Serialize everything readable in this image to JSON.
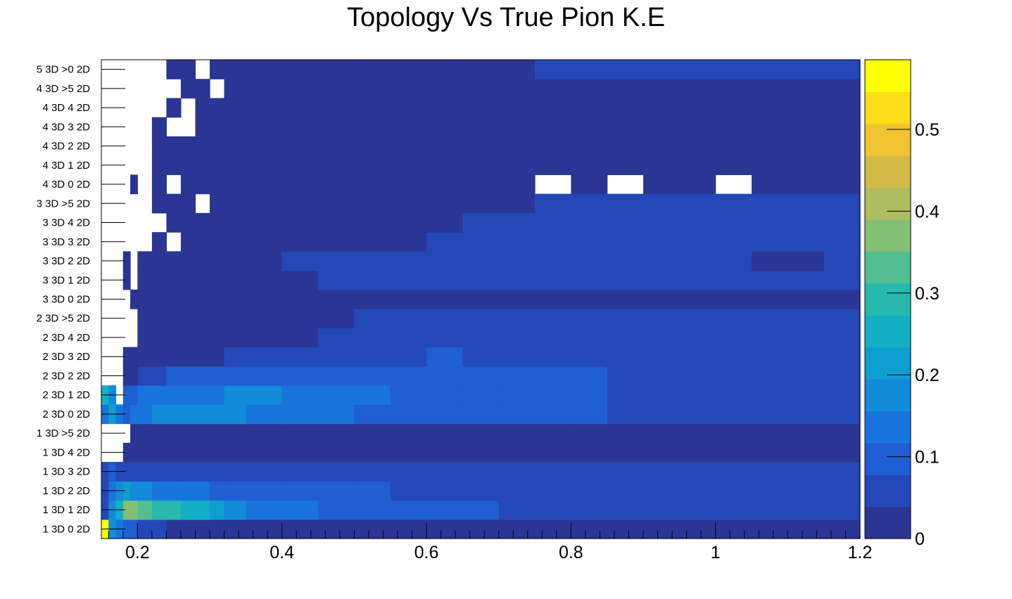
{
  "chart_data": {
    "type": "heatmap",
    "title": "Topology Vs True Pion K.E",
    "xlabel": "",
    "ylabel": "",
    "xlim": [
      0.15,
      1.2
    ],
    "x_ticks": [
      "0.2",
      "0.4",
      "0.6",
      "0.8",
      "1",
      "1.2"
    ],
    "x_tick_values": [
      0.2,
      0.4,
      0.6,
      0.8,
      1.0,
      1.2
    ],
    "y_categories": [
      "1 3D  0 2D",
      "1 3D  1 2D",
      "1 3D  2 2D",
      "1 3D  3 2D",
      "1 3D  4 2D",
      "1 3D  >5 2D",
      "2 3D  0 2D",
      "2 3D  1 2D",
      "2 3D  2 2D",
      "2 3D  3 2D",
      "2 3D  4 2D",
      "2 3D  >5 2D",
      "3 3D  0 2D",
      "3 3D  1 2D",
      "3 3D  2 2D",
      "3 3D  3 2D",
      "3 3D  4 2D",
      "3 3D  >5 2D",
      "4 3D  0 2D",
      "4 3D  1 2D",
      "4 3D  2 2D",
      "4 3D  3 2D",
      "4 3D  4 2D",
      "4 3D  >5 2D",
      "5 3D  >0 2D"
    ],
    "zlim": [
      0,
      0.585
    ],
    "colorbar_ticks": [
      "0",
      "0.1",
      "0.2",
      "0.3",
      "0.4",
      "0.5"
    ],
    "colorbar_tick_values": [
      0,
      0.1,
      0.2,
      0.3,
      0.4,
      0.5
    ],
    "colorscale": [
      "#2b3594",
      "#2548b8",
      "#1f5ed3",
      "#1874dc",
      "#128bd9",
      "#0e9fd0",
      "#13afc4",
      "#28b8ae",
      "#53be91",
      "#83bf75",
      "#aebd5f",
      "#d4bb47",
      "#f1c331",
      "#fcde19",
      "#ffff00"
    ],
    "x_bin_edges": [
      0.15,
      0.16,
      0.17,
      0.18,
      0.19,
      0.2,
      0.22,
      0.24,
      0.26,
      0.28,
      0.3,
      0.32,
      0.35,
      0.4,
      0.45,
      0.5,
      0.55,
      0.6,
      0.65,
      0.7,
      0.75,
      0.8,
      0.85,
      0.9,
      0.95,
      1.0,
      1.05,
      1.1,
      1.15,
      1.2
    ],
    "rows": [
      [
        0.58,
        0.18,
        0.13,
        0.1,
        0.08,
        0.07,
        0.05,
        0.03,
        0.03,
        0.03,
        0.03,
        0.01,
        0.01,
        0.01,
        0.01,
        0.01,
        0.01,
        0.01,
        0.01,
        0.01,
        0.01,
        0.01,
        0.01,
        0.01,
        0.01,
        0.01,
        0.01,
        0.01,
        0.01
      ],
      [
        0.05,
        0.19,
        0.26,
        0.38,
        0.36,
        0.33,
        0.3,
        0.29,
        0.27,
        0.24,
        0.2,
        0.18,
        0.15,
        0.12,
        0.1,
        0.1,
        0.09,
        0.08,
        0.08,
        0.07,
        0.07,
        0.07,
        0.07,
        0.06,
        0.06,
        0.06,
        0.06,
        0.05,
        0.05
      ],
      [
        0.05,
        0.15,
        0.17,
        0.2,
        0.19,
        0.17,
        0.15,
        0.13,
        0.12,
        0.12,
        0.11,
        0.1,
        0.09,
        0.09,
        0.08,
        0.08,
        0.07,
        0.07,
        0.07,
        0.06,
        0.06,
        0.06,
        0.06,
        0.06,
        0.05,
        0.05,
        0.05,
        0.05,
        0.05
      ],
      [
        0.05,
        0.1,
        0.05,
        0.05,
        0.05,
        0.05,
        0.05,
        0.05,
        0.05,
        0.05,
        0.06,
        0.06,
        0.06,
        0.06,
        0.06,
        0.05,
        0.05,
        0.05,
        0.05,
        0.05,
        0.05,
        0.05,
        0.05,
        0.05,
        0.04,
        0.04,
        0.04,
        0.04,
        0.04
      ],
      [
        null,
        null,
        null,
        0.01,
        0.01,
        0.01,
        0.01,
        0.01,
        0.01,
        0.01,
        0.01,
        0.02,
        0.02,
        0.02,
        0.02,
        0.02,
        0.02,
        0.02,
        0.02,
        0.02,
        0.02,
        0.02,
        0.02,
        0.02,
        0.02,
        0.02,
        0.02,
        0.02,
        0.02
      ],
      [
        null,
        null,
        null,
        null,
        0.01,
        0.01,
        0.01,
        0.01,
        0.01,
        0.01,
        0.01,
        0.01,
        0.01,
        0.02,
        0.02,
        0.02,
        0.02,
        0.02,
        0.02,
        0.02,
        0.02,
        0.02,
        0.02,
        0.02,
        0.02,
        0.02,
        0.02,
        0.02,
        0.03
      ],
      [
        0.15,
        0.2,
        0.15,
        0.1,
        0.12,
        0.15,
        0.17,
        0.19,
        0.19,
        0.19,
        0.19,
        0.18,
        0.15,
        0.13,
        0.12,
        0.11,
        0.1,
        0.1,
        0.09,
        0.09,
        0.08,
        0.08,
        0.07,
        0.07,
        0.07,
        0.07,
        0.06,
        0.06,
        0.06
      ],
      [
        0.27,
        0.17,
        null,
        0.1,
        0.11,
        0.12,
        0.12,
        0.13,
        0.13,
        0.14,
        0.15,
        0.16,
        0.16,
        0.13,
        0.12,
        0.12,
        0.11,
        0.1,
        0.09,
        0.09,
        0.08,
        0.08,
        0.07,
        0.07,
        0.07,
        0.07,
        0.06,
        0.06,
        0.06
      ],
      [
        null,
        null,
        null,
        0.03,
        0.03,
        0.05,
        0.07,
        0.08,
        0.09,
        0.09,
        0.1,
        0.11,
        0.11,
        0.11,
        0.1,
        0.1,
        0.1,
        0.09,
        0.09,
        0.08,
        0.08,
        0.08,
        0.07,
        0.07,
        0.07,
        0.06,
        0.06,
        0.06,
        0.06
      ],
      [
        null,
        null,
        null,
        0.01,
        0.01,
        0.01,
        0.01,
        0.01,
        0.01,
        0.03,
        0.03,
        0.04,
        0.05,
        0.06,
        0.07,
        0.07,
        0.07,
        0.08,
        0.07,
        0.07,
        0.07,
        0.07,
        0.06,
        0.06,
        0.06,
        0.06,
        0.05,
        0.05,
        0.05
      ],
      [
        null,
        null,
        null,
        null,
        null,
        0.01,
        0.01,
        0.01,
        0.01,
        0.01,
        0.01,
        0.01,
        0.02,
        0.03,
        0.04,
        0.05,
        0.05,
        0.05,
        0.05,
        0.05,
        0.05,
        0.05,
        0.05,
        0.05,
        0.05,
        0.05,
        0.05,
        0.05,
        0.05
      ],
      [
        null,
        null,
        null,
        null,
        null,
        0.01,
        0.01,
        0.01,
        0.01,
        0.01,
        0.01,
        0.01,
        0.01,
        0.02,
        0.03,
        0.04,
        0.04,
        0.05,
        0.05,
        0.05,
        0.05,
        0.05,
        0.05,
        0.05,
        0.06,
        0.06,
        0.06,
        0.06,
        0.06
      ],
      [
        null,
        null,
        null,
        null,
        0.01,
        0.01,
        0.01,
        0.01,
        0.01,
        0.01,
        0.01,
        0.01,
        0.01,
        0.01,
        0.01,
        0.02,
        0.02,
        0.02,
        0.02,
        0.02,
        0.02,
        0.01,
        0.01,
        0.01,
        0.01,
        0.01,
        0.01,
        0.01,
        0.01
      ],
      [
        null,
        null,
        null,
        0.01,
        null,
        0.01,
        0.01,
        0.01,
        0.01,
        0.01,
        0.01,
        0.01,
        0.02,
        0.03,
        0.04,
        0.04,
        0.04,
        0.04,
        0.04,
        0.04,
        0.04,
        0.04,
        0.04,
        0.04,
        0.04,
        0.04,
        0.04,
        0.04,
        0.04
      ],
      [
        null,
        null,
        null,
        0.01,
        null,
        0.01,
        0.01,
        0.01,
        0.01,
        0.01,
        0.01,
        0.01,
        0.02,
        0.04,
        0.04,
        0.04,
        0.04,
        0.04,
        0.04,
        0.04,
        0.04,
        0.04,
        0.04,
        0.04,
        0.04,
        0.04,
        0.03,
        0.03,
        0.04
      ],
      [
        null,
        null,
        null,
        null,
        null,
        null,
        0.01,
        null,
        0.01,
        0.01,
        0.01,
        0.01,
        0.01,
        0.01,
        0.02,
        0.03,
        0.03,
        0.04,
        0.04,
        0.04,
        0.04,
        0.04,
        0.04,
        0.04,
        0.04,
        0.04,
        0.04,
        0.04,
        0.04
      ],
      [
        null,
        null,
        null,
        null,
        null,
        null,
        null,
        0.01,
        0.01,
        0.01,
        0.01,
        0.01,
        0.01,
        0.01,
        0.02,
        0.02,
        0.03,
        0.03,
        0.04,
        0.04,
        0.04,
        0.04,
        0.04,
        0.04,
        0.04,
        0.04,
        0.04,
        0.04,
        0.04
      ],
      [
        null,
        null,
        null,
        null,
        null,
        null,
        0.01,
        0.01,
        0.01,
        null,
        0.01,
        0.01,
        0.01,
        0.01,
        0.01,
        0.01,
        0.02,
        0.02,
        0.02,
        0.03,
        0.04,
        0.04,
        0.05,
        0.05,
        0.05,
        0.05,
        0.05,
        0.05,
        0.05
      ],
      [
        null,
        null,
        null,
        null,
        0.01,
        null,
        0.01,
        null,
        0.01,
        0.01,
        0.01,
        0.01,
        0.01,
        0.01,
        0.01,
        0.01,
        0.01,
        0.01,
        0.01,
        0.01,
        null,
        0.01,
        null,
        0.01,
        0.01,
        null,
        0.01,
        0.01,
        0.01
      ],
      [
        null,
        null,
        null,
        null,
        null,
        null,
        0.01,
        0.01,
        0.01,
        0.01,
        0.01,
        0.01,
        0.01,
        0.01,
        0.01,
        0.01,
        0.01,
        0.01,
        0.01,
        0.01,
        0.01,
        0.01,
        0.01,
        0.01,
        0.01,
        0.01,
        0.01,
        0.01,
        0.01
      ],
      [
        null,
        null,
        null,
        null,
        null,
        null,
        0.01,
        0.01,
        0.01,
        0.01,
        0.01,
        0.01,
        0.01,
        0.01,
        0.01,
        0.01,
        0.01,
        0.01,
        0.01,
        0.01,
        0.01,
        0.01,
        0.01,
        0.01,
        0.02,
        0.01,
        0.01,
        0.01,
        0.02
      ],
      [
        null,
        null,
        null,
        null,
        null,
        null,
        0.01,
        null,
        null,
        0.01,
        0.01,
        0.01,
        0.01,
        0.01,
        0.01,
        0.01,
        0.01,
        0.01,
        0.01,
        0.01,
        0.01,
        0.01,
        0.02,
        0.02,
        0.02,
        0.02,
        0.02,
        0.02,
        0.02
      ],
      [
        null,
        null,
        null,
        null,
        null,
        null,
        null,
        0.01,
        null,
        0.01,
        0.01,
        0.01,
        0.01,
        0.01,
        0.01,
        0.01,
        0.01,
        0.01,
        0.01,
        0.01,
        0.01,
        0.01,
        0.02,
        0.02,
        0.02,
        0.02,
        0.02,
        0.02,
        0.02
      ],
      [
        null,
        null,
        null,
        null,
        null,
        null,
        null,
        null,
        0.01,
        0.01,
        null,
        0.01,
        0.01,
        0.01,
        0.01,
        0.01,
        0.01,
        0.01,
        0.01,
        0.01,
        0.01,
        0.01,
        0.02,
        0.02,
        0.03,
        0.03,
        0.03,
        0.03,
        0.03
      ],
      [
        null,
        null,
        null,
        null,
        null,
        null,
        null,
        0.01,
        0.01,
        null,
        0.01,
        0.01,
        0.01,
        0.01,
        0.01,
        0.01,
        0.01,
        0.02,
        0.03,
        0.03,
        0.04,
        0.04,
        0.04,
        0.05,
        0.05,
        0.05,
        0.05,
        0.05,
        0.05
      ]
    ]
  }
}
